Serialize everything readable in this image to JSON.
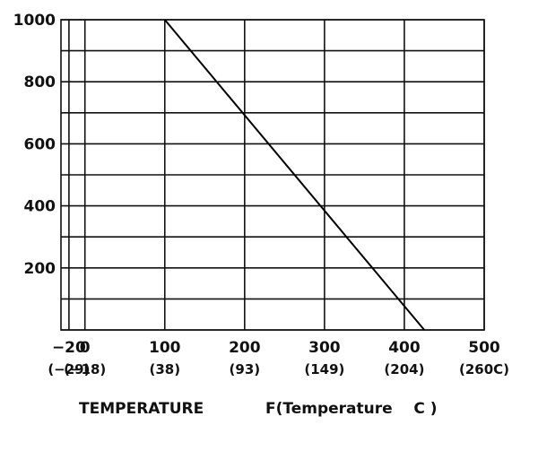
{
  "chart_data": {
    "type": "line",
    "title": "",
    "ylabel": "",
    "xlabel_left": "TEMPERATURE",
    "xlabel_right": "F(Temperature    C )",
    "xlim": [
      -30,
      500
    ],
    "ylim": [
      0,
      1000
    ],
    "x_vertical_lines": [
      -20,
      0,
      100,
      200,
      300,
      400,
      500
    ],
    "y_horizontal_lines": [
      0,
      100,
      200,
      300,
      400,
      500,
      600,
      700,
      800,
      900,
      1000
    ],
    "x_ticks": [
      {
        "value": -20,
        "label": "−20",
        "c_label": "(−29)"
      },
      {
        "value": 0,
        "label": "0",
        "c_label": "(−18)"
      },
      {
        "value": 100,
        "label": "100",
        "c_label": "(38)"
      },
      {
        "value": 200,
        "label": "200",
        "c_label": "(93)"
      },
      {
        "value": 300,
        "label": "300",
        "c_label": "(149)"
      },
      {
        "value": 400,
        "label": "400",
        "c_label": "(204)"
      },
      {
        "value": 500,
        "label": "500",
        "c_label": "(260C)"
      }
    ],
    "y_ticks": [
      {
        "value": 1000,
        "label": "1000"
      },
      {
        "value": 800,
        "label": "800"
      },
      {
        "value": 600,
        "label": "600"
      },
      {
        "value": 400,
        "label": "400"
      },
      {
        "value": 200,
        "label": "200"
      }
    ],
    "series": [
      {
        "x": [
          100,
          425
        ],
        "y": [
          1000,
          0
        ]
      }
    ]
  }
}
